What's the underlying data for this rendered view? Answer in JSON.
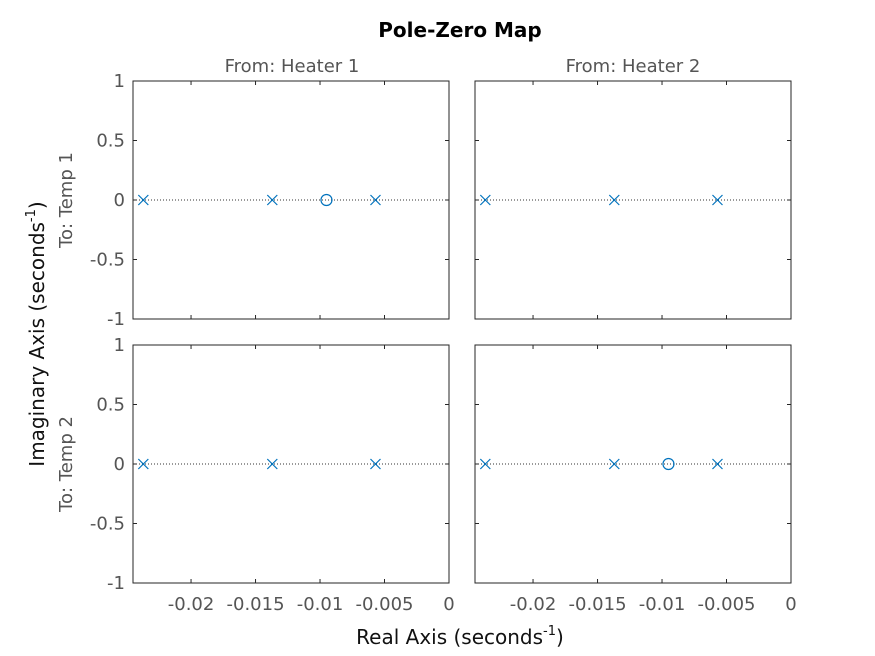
{
  "chart_data": {
    "type": "scatter",
    "title": "Pole-Zero Map",
    "xlabel": "Real Axis (seconds",
    "ylabel": "Imaginary Axis (seconds",
    "unit_superscript": "-1",
    "xlabel_close": ")",
    "ylabel_close": ")",
    "columns": [
      "From: Heater 1",
      "From: Heater 2"
    ],
    "rows": [
      "To: Temp 1",
      "To: Temp 2"
    ],
    "xlim": [
      -0.0245,
      0
    ],
    "ylim": [
      -1,
      1
    ],
    "xticks": [
      -0.02,
      -0.015,
      -0.01,
      -0.005,
      0
    ],
    "xtick_labels": [
      "-0.02",
      "-0.015",
      "-0.01",
      "-0.005",
      "0"
    ],
    "yticks": [
      1,
      0.5,
      0,
      -0.5,
      -1
    ],
    "ytick_labels": [
      "1",
      "0.5",
      "0",
      "-0.5",
      "-1"
    ],
    "grid": false,
    "colors": {
      "marker": "#0072bd",
      "frame": "#262626"
    },
    "subplots": [
      {
        "row": 0,
        "col": 0,
        "poles": [
          -0.0237,
          -0.0137,
          -0.0057
        ],
        "zeros": [
          -0.0095
        ]
      },
      {
        "row": 0,
        "col": 1,
        "poles": [
          -0.0237,
          -0.0137,
          -0.0057
        ],
        "zeros": []
      },
      {
        "row": 1,
        "col": 0,
        "poles": [
          -0.0237,
          -0.0137,
          -0.0057
        ],
        "zeros": []
      },
      {
        "row": 1,
        "col": 1,
        "poles": [
          -0.0237,
          -0.0137,
          -0.0057
        ],
        "zeros": [
          -0.0095
        ]
      }
    ]
  }
}
